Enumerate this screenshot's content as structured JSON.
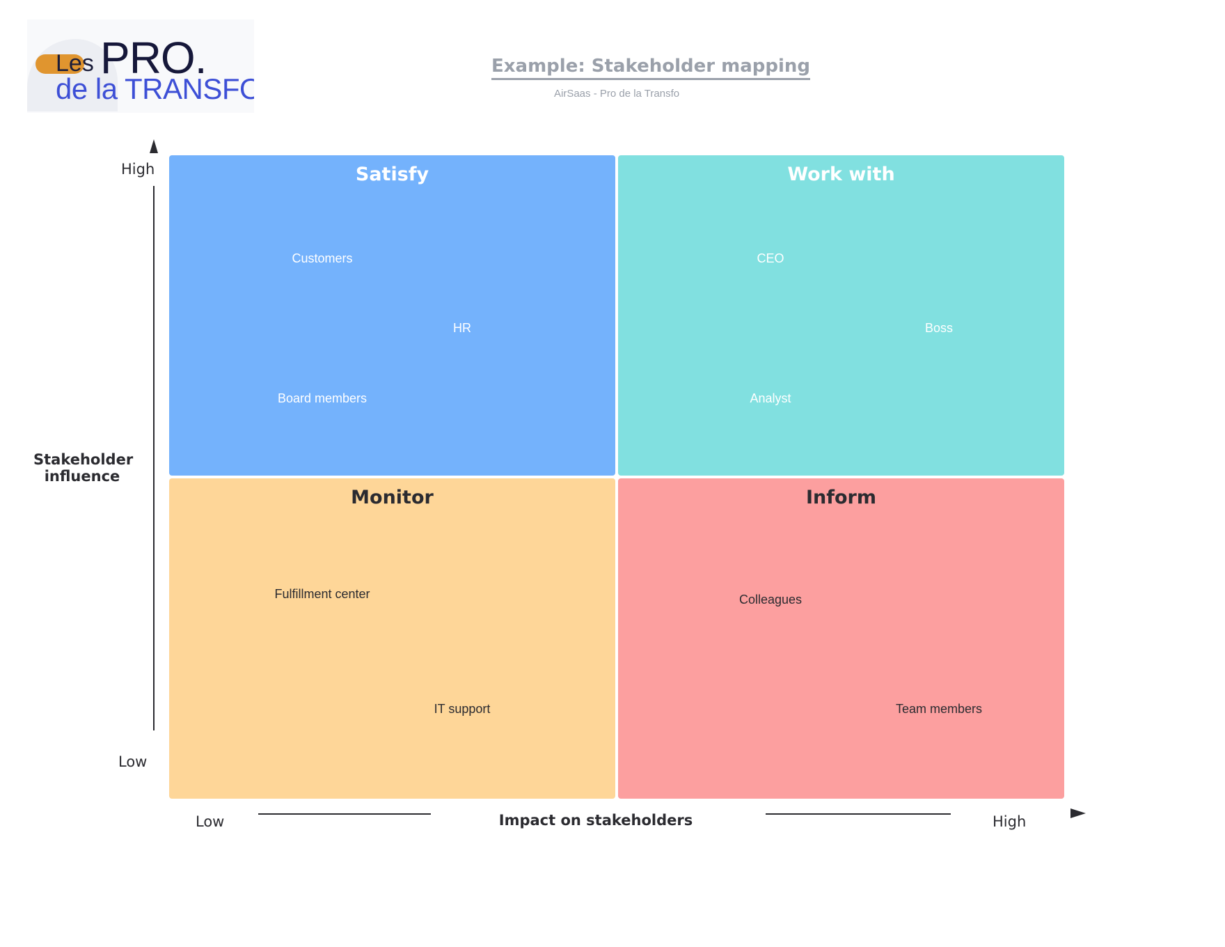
{
  "logo": {
    "line1_small": "Les",
    "line1_big": "PRO.",
    "line2": "de la TRANSFO."
  },
  "header": {
    "title": "Example: Stakeholder mapping",
    "subtitle": "AirSaas - Pro de la Transfo"
  },
  "axes": {
    "y_title": "Stakeholder influence",
    "y_high": "High",
    "y_low": "Low",
    "x_title": "Impact on stakeholders",
    "x_low": "Low",
    "x_high": "High"
  },
  "quadrants": {
    "satisfy": {
      "title": "Satisfy",
      "color": "#74b2fc",
      "items": [
        "Customers",
        "HR",
        "Board members"
      ]
    },
    "work_with": {
      "title": "Work with",
      "color": "#81e0e0",
      "items": [
        "CEO",
        "Boss",
        "Analyst"
      ]
    },
    "monitor": {
      "title": "Monitor",
      "color": "#fed698",
      "items": [
        "Fulfillment center",
        "IT support"
      ]
    },
    "inform": {
      "title": "Inform",
      "color": "#fc9f9f",
      "items": [
        "Colleagues",
        "Team members"
      ]
    }
  }
}
